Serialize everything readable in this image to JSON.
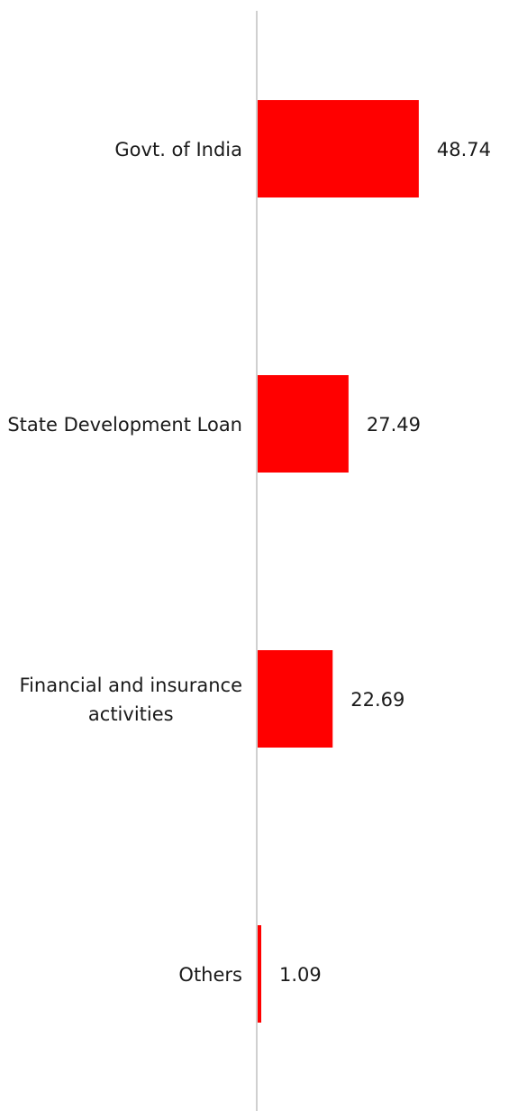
{
  "chart_data": {
    "type": "bar",
    "orientation": "horizontal",
    "categories": [
      [
        "Govt. of India"
      ],
      [
        "State Development Loan"
      ],
      [
        "Financial and insurance",
        "activities"
      ],
      [
        "Others"
      ]
    ],
    "values": [
      48.74,
      27.49,
      22.69,
      1.09
    ],
    "data_labels": [
      "48.74",
      "27.49",
      "22.69",
      "1.09"
    ],
    "xlim": [
      0,
      100
    ],
    "grid": false,
    "legend": "none",
    "bar_color": "#ff0000",
    "axis_color": "#d0d0d0"
  }
}
